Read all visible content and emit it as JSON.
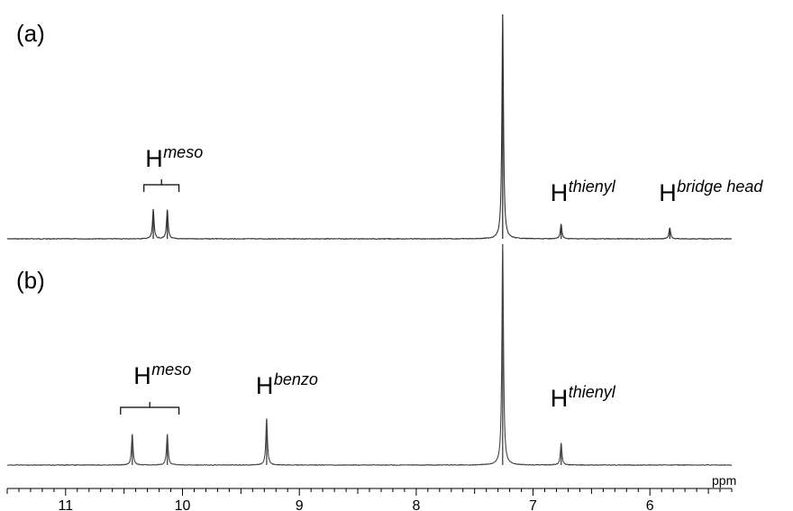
{
  "chart_data": [
    {
      "type": "line",
      "panel_label": "(a)",
      "trace_color": "#333333",
      "series": [
        {
          "peaks": [
            {
              "x": 10.25,
              "height": 0.13
            },
            {
              "x": 10.13,
              "height": 0.13
            },
            {
              "x": 7.26,
              "height": 1.0
            },
            {
              "x": 6.76,
              "height": 0.065
            },
            {
              "x": 5.83,
              "height": 0.05
            }
          ]
        }
      ],
      "annotations": [
        {
          "base": "H",
          "sup": "meso",
          "x_from": 10.33,
          "x_to": 10.03,
          "bracket": true
        },
        {
          "base": "H",
          "sup": "thienyl",
          "x": 6.76,
          "bracket": false
        },
        {
          "base": "H",
          "sup": "bridge head",
          "x": 5.83,
          "bracket": false
        }
      ]
    },
    {
      "type": "line",
      "panel_label": "(b)",
      "trace_color": "#444444",
      "series": [
        {
          "peaks": [
            {
              "x": 10.43,
              "height": 0.14
            },
            {
              "x": 10.13,
              "height": 0.14
            },
            {
              "x": 9.28,
              "height": 0.21
            },
            {
              "x": 7.26,
              "height": 1.0
            },
            {
              "x": 6.76,
              "height": 0.1
            }
          ]
        }
      ],
      "annotations": [
        {
          "base": "H",
          "sup": "meso",
          "x_from": 10.53,
          "x_to": 10.03,
          "bracket": true
        },
        {
          "base": "H",
          "sup": "benzo",
          "x": 9.28,
          "bracket": false
        },
        {
          "base": "H",
          "sup": "thienyl",
          "x": 6.76,
          "bracket": false
        }
      ]
    }
  ],
  "axis": {
    "unit": "ppm",
    "xlim": [
      11.5,
      5.3
    ],
    "reversed": true,
    "ticks": [
      "11",
      "10",
      "9",
      "8",
      "7",
      "6"
    ]
  }
}
